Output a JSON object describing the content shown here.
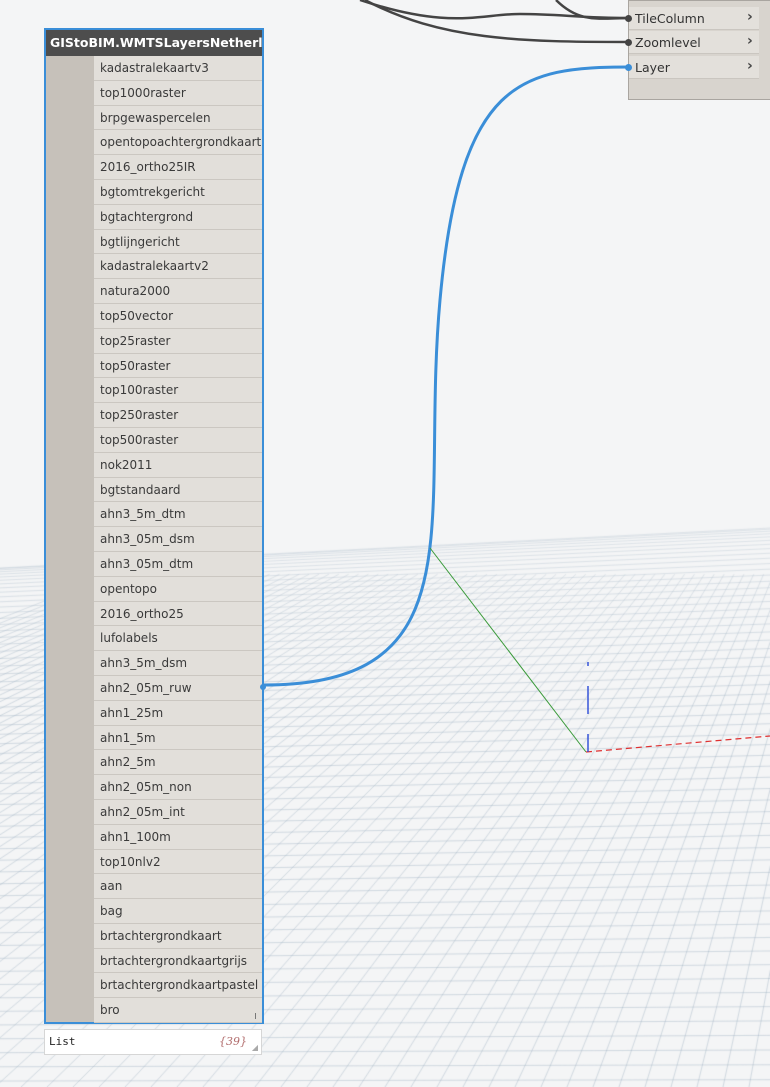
{
  "node": {
    "title": "GIStoBIM.WMTSLayersNetherlands",
    "items": [
      "kadastralekaartv3",
      "top1000raster",
      "brpgewaspercelen",
      "opentopoachtergrondkaart",
      "2016_ortho25IR",
      "bgtomtrekgericht",
      "bgtachtergrond",
      "bgtlijngericht",
      "kadastralekaartv2",
      "natura2000",
      "top50vector",
      "top25raster",
      "top50raster",
      "top100raster",
      "top250raster",
      "top500raster",
      "nok2011",
      "bgtstandaard",
      "ahn3_5m_dtm",
      "ahn3_05m_dsm",
      "ahn3_05m_dtm",
      "opentopo",
      "2016_ortho25",
      "lufolabels",
      "ahn3_5m_dsm",
      "ahn2_05m_ruw",
      "ahn1_25m",
      "ahn1_5m",
      "ahn2_5m",
      "ahn2_05m_non",
      "ahn2_05m_int",
      "ahn1_100m",
      "top10nlv2",
      "aan",
      "bag",
      "brtachtergrondkaart",
      "brtachtergrondkaartgrijs",
      "brtachtergrondkaartpastel",
      "bro"
    ]
  },
  "preview": {
    "label": "List",
    "count": "{39}"
  },
  "target_node": {
    "ports": [
      "TileColumn",
      "Zoomlevel",
      "Layer"
    ],
    "chevron": "›"
  },
  "colors": {
    "selected_wire": "#3a8ed8",
    "wire": "#444444",
    "axis_x": "#e03030",
    "axis_y": "#3a9a3a",
    "axis_z": "#2a4ad8"
  }
}
